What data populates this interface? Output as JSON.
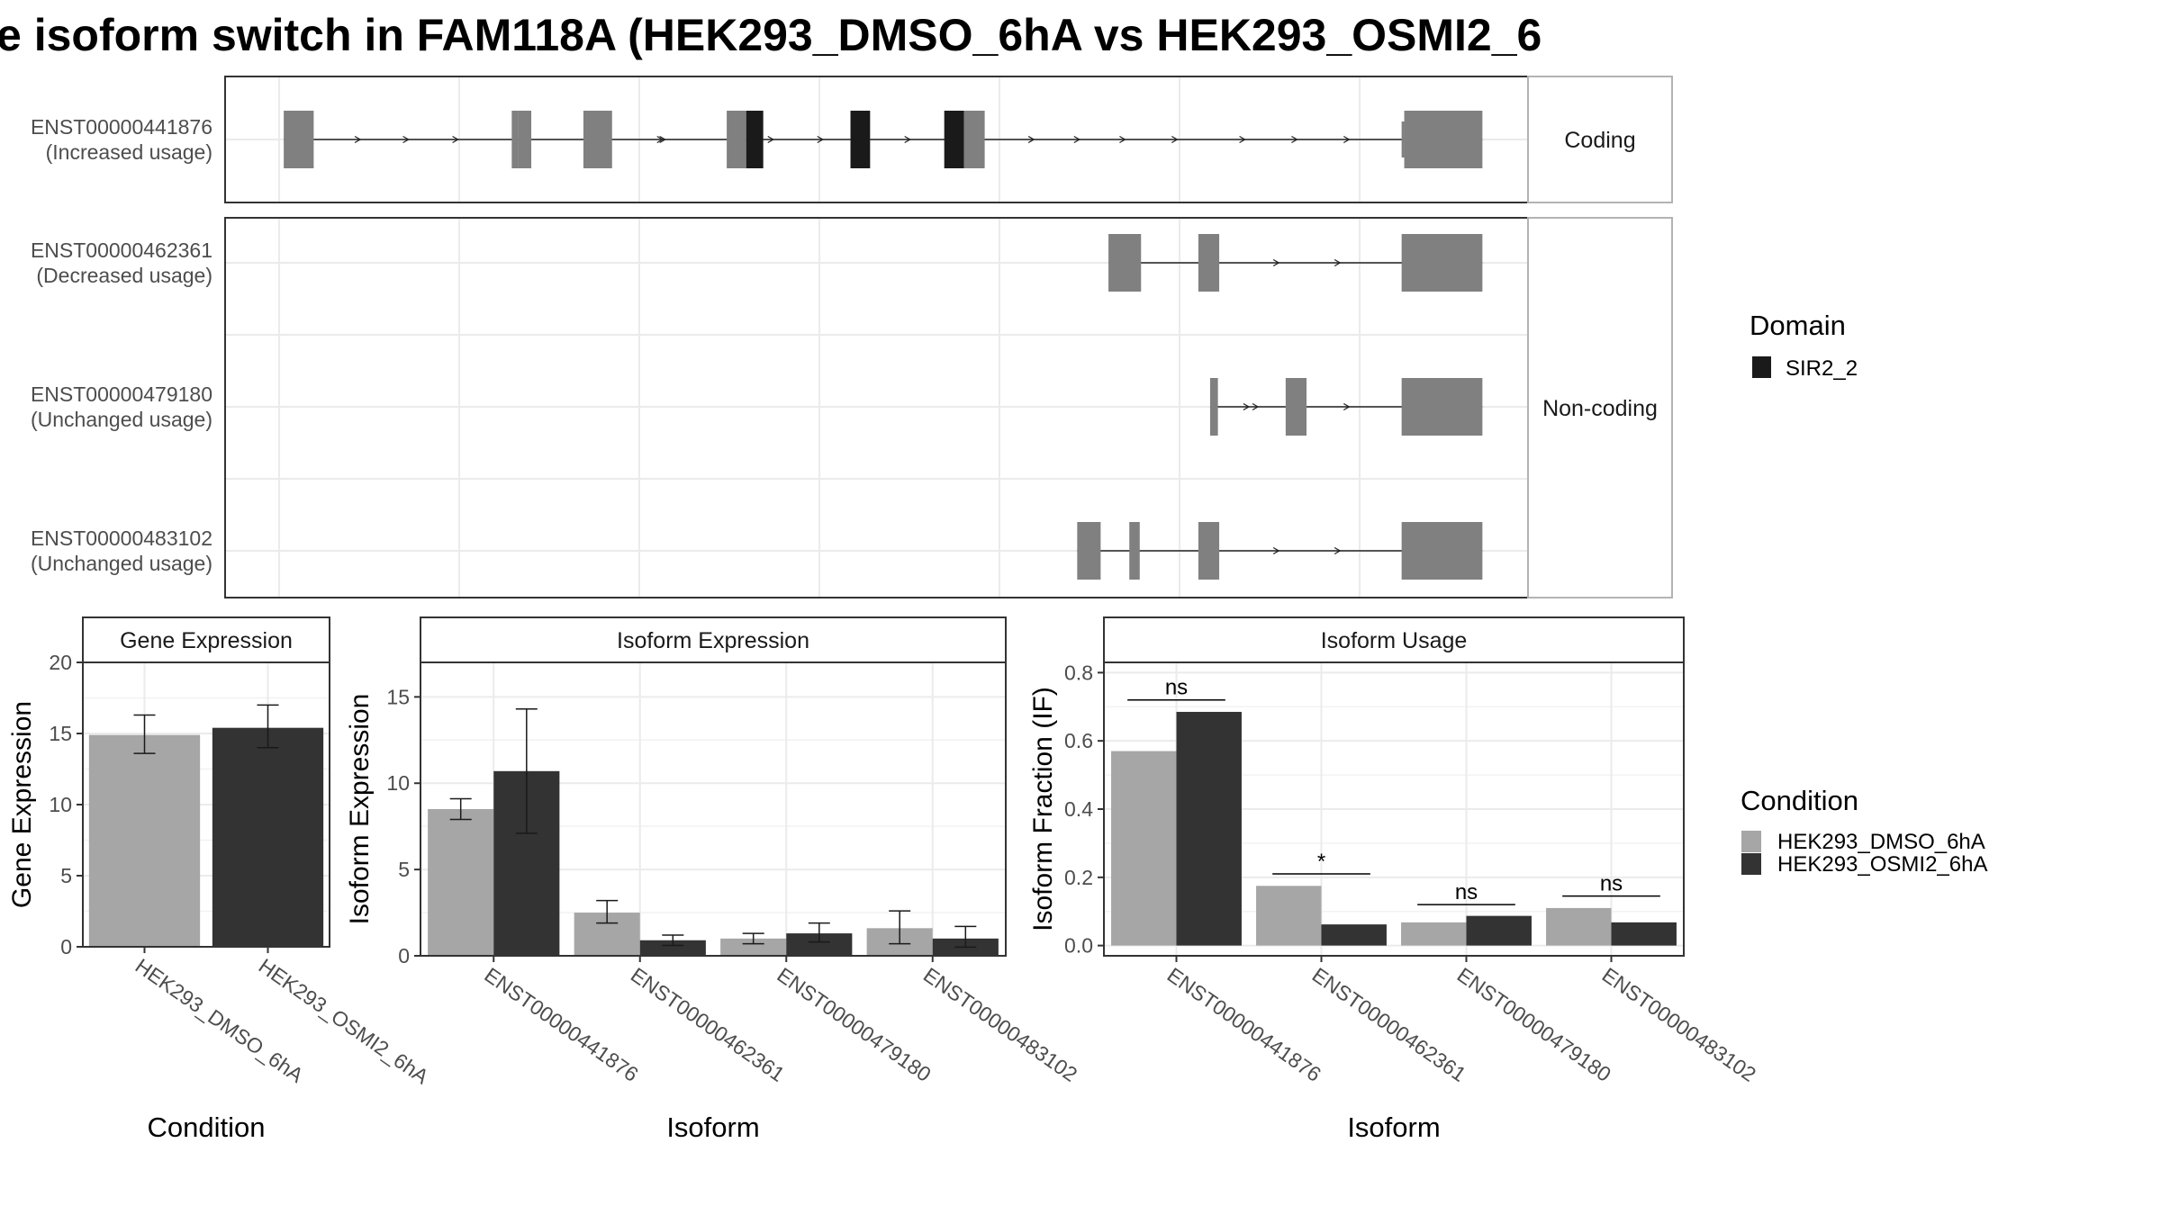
{
  "title": "e isoform switch in FAM118A (HEK293_DMSO_6hA vs HEK293_OSMI2_6",
  "colors": {
    "exon": "#808080",
    "domain": "#1a1a1a",
    "cond1": "#a6a6a6",
    "cond2": "#333333",
    "grid": "#ebebeb",
    "strip": "#ffffff"
  },
  "structure": {
    "x_range": [
      0,
      1000
    ],
    "groups": [
      {
        "label": "Coding",
        "transcripts": [
          0
        ]
      },
      {
        "label": "Non-coding",
        "transcripts": [
          1,
          2,
          3
        ]
      }
    ],
    "transcripts": [
      {
        "id": "ENST00000441876",
        "usage": "(Increased usage)",
        "exons": [
          [
            45,
            68
          ],
          [
            220,
            225
          ],
          [
            225,
            235
          ],
          [
            275,
            297
          ],
          [
            385,
            400
          ],
          [
            400,
            413
          ],
          [
            480,
            495
          ],
          [
            552,
            567
          ],
          [
            567,
            583
          ],
          [
            903,
            905
          ],
          [
            905,
            965
          ]
        ],
        "domains": [
          [
            400,
            413
          ],
          [
            480,
            495
          ],
          [
            552,
            567
          ]
        ],
        "arrows": [
          103,
          140,
          178,
          335,
          337,
          420,
          458,
          493,
          525,
          620,
          655,
          690,
          730,
          782,
          822,
          862
        ]
      },
      {
        "id": "ENST00000462361",
        "usage": "(Decreased usage)",
        "exons": [
          [
            678,
            703
          ],
          [
            747,
            763
          ],
          [
            903,
            965
          ]
        ],
        "domains": [],
        "arrows": [
          808,
          855
        ]
      },
      {
        "id": "ENST00000479180",
        "usage": "(Unchanged usage)",
        "exons": [
          [
            756,
            762
          ],
          [
            814,
            830
          ],
          [
            903,
            965
          ]
        ],
        "domains": [],
        "arrows": [
          785,
          792,
          862
        ]
      },
      {
        "id": "ENST00000483102",
        "usage": "(Unchanged usage)",
        "exons": [
          [
            654,
            672
          ],
          [
            694,
            702
          ],
          [
            747,
            763
          ],
          [
            903,
            965
          ]
        ],
        "domains": [],
        "arrows": [
          808,
          855
        ]
      }
    ]
  },
  "domain_legend": {
    "title": "Domain",
    "items": [
      {
        "name": "SIR2_2"
      }
    ]
  },
  "condition_legend": {
    "title": "Condition",
    "items": [
      {
        "name": "HEK293_DMSO_6hA"
      },
      {
        "name": "HEK293_OSMI2_6hA"
      }
    ]
  },
  "chart_data": [
    {
      "type": "bar",
      "title": "Gene Expression",
      "xlabel": "Condition",
      "ylabel": "Gene Expression",
      "ylim": [
        0,
        20
      ],
      "yticks": [
        0,
        5,
        10,
        15,
        20
      ],
      "categories": [
        "HEK293_DMSO_6hA",
        "HEK293_OSMI2_6hA"
      ],
      "values": [
        14.9,
        15.4
      ],
      "err_low": [
        13.6,
        14.0
      ],
      "err_high": [
        16.3,
        17.0
      ]
    },
    {
      "type": "bar",
      "title": "Isoform Expression",
      "xlabel": "Isoform",
      "ylabel": "Isoform Expression",
      "ylim": [
        0,
        17
      ],
      "yticks": [
        0,
        5,
        10,
        15
      ],
      "categories": [
        "ENST00000441876",
        "ENST00000462361",
        "ENST00000479180",
        "ENST00000483102"
      ],
      "series": [
        {
          "name": "HEK293_DMSO_6hA",
          "values": [
            8.5,
            2.5,
            1.0,
            1.6
          ],
          "err_low": [
            7.9,
            1.9,
            0.7,
            0.7
          ],
          "err_high": [
            9.1,
            3.2,
            1.3,
            2.6
          ]
        },
        {
          "name": "HEK293_OSMI2_6hA",
          "values": [
            10.7,
            0.9,
            1.3,
            1.0
          ],
          "err_low": [
            7.1,
            0.6,
            0.8,
            0.5
          ],
          "err_high": [
            14.3,
            1.2,
            1.9,
            1.7
          ]
        }
      ]
    },
    {
      "type": "bar",
      "title": "Isoform Usage",
      "xlabel": "Isoform",
      "ylabel": "Isoform Fraction (IF)",
      "ylim": [
        -0.03,
        0.83
      ],
      "yticks": [
        0.0,
        0.2,
        0.4,
        0.6,
        0.8
      ],
      "categories": [
        "ENST00000441876",
        "ENST00000462361",
        "ENST00000479180",
        "ENST00000483102"
      ],
      "series": [
        {
          "name": "HEK293_DMSO_6hA",
          "values": [
            0.57,
            0.175,
            0.068,
            0.11
          ]
        },
        {
          "name": "HEK293_OSMI2_6hA",
          "values": [
            0.685,
            0.062,
            0.087,
            0.068
          ]
        }
      ],
      "significance": [
        "ns",
        "*",
        "ns",
        "ns"
      ],
      "sig_y": [
        0.72,
        0.21,
        0.12,
        0.145
      ]
    }
  ]
}
